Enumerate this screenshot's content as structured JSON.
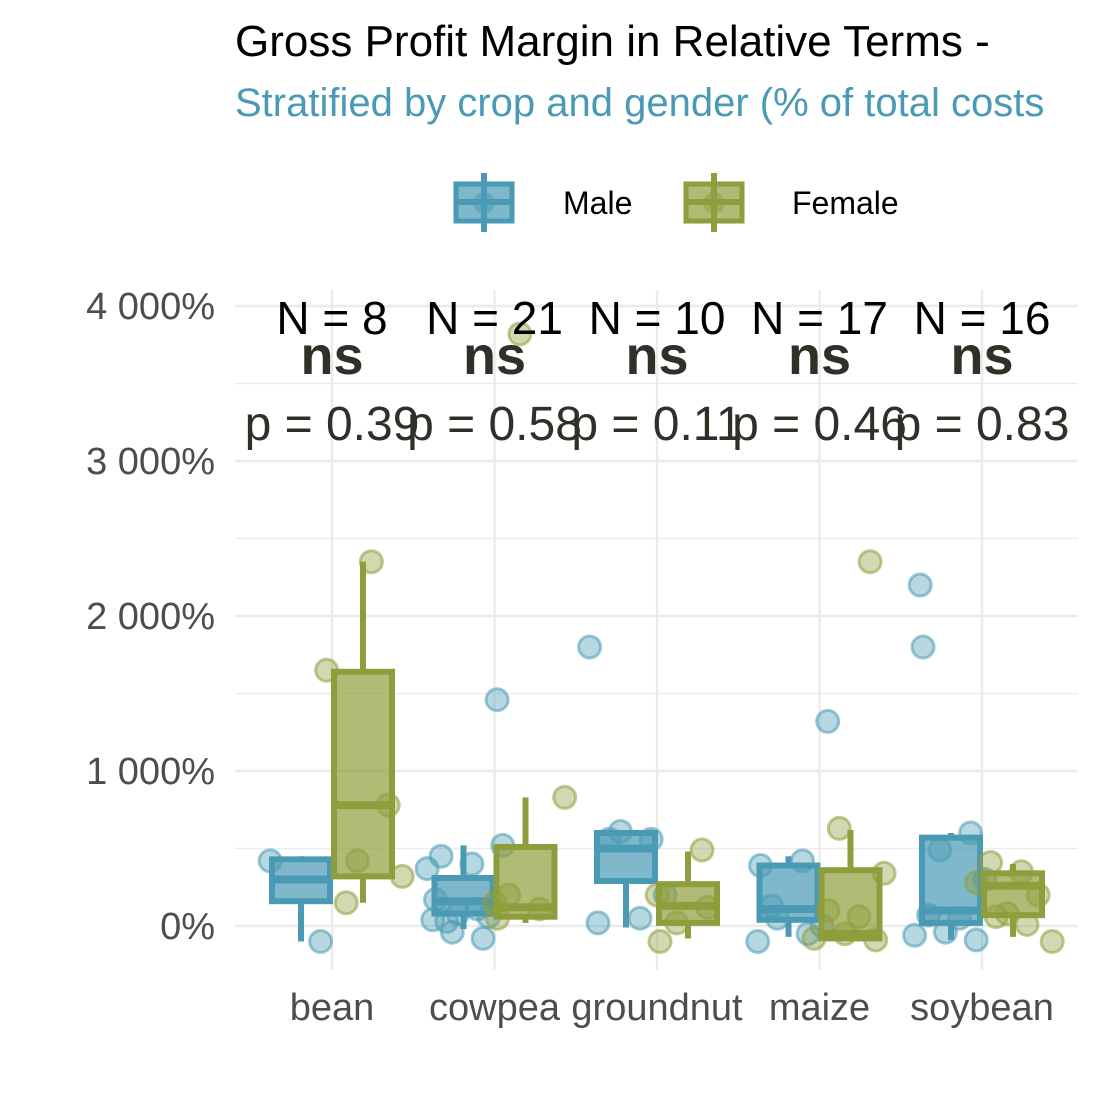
{
  "chart_data": {
    "type": "boxplot",
    "title": "Gross Profit Margin in Relative Terms - ",
    "subtitle": "Stratified by crop and gender (% of total costs",
    "xlabel": "",
    "ylabel": "",
    "ylim": [
      -280,
      4000
    ],
    "y_ticks": [
      0,
      1000,
      2000,
      3000,
      4000
    ],
    "y_tick_labels": [
      "0%",
      "1 000%",
      "2 000%",
      "3 000%",
      "4 000%"
    ],
    "grid": true,
    "legend_position": "top",
    "categories": [
      "bean",
      "cowpea",
      "groundnut",
      "maize",
      "soybean"
    ],
    "series": [
      {
        "name": "Male",
        "color": "#4a9ab5",
        "boxes": [
          {
            "q1": 160,
            "median": 300,
            "q3": 430,
            "whisker_low": -100,
            "whisker_high": 450
          },
          {
            "q1": 80,
            "median": 160,
            "q3": 310,
            "whisker_low": -20,
            "whisker_high": 520
          },
          {
            "q1": 290,
            "median": 500,
            "q3": 600,
            "whisker_low": -10,
            "whisker_high": 600
          },
          {
            "q1": 40,
            "median": 110,
            "q3": 390,
            "whisker_low": -70,
            "whisker_high": 450
          },
          {
            "q1": 20,
            "median": 100,
            "q3": 570,
            "whisker_low": -90,
            "whisker_high": 600
          }
        ],
        "points": [
          [
            420,
            -100
          ],
          [
            1460,
            450,
            400,
            370,
            60,
            80,
            520,
            30,
            110,
            170,
            40,
            -80,
            -40
          ],
          [
            1800,
            560,
            610,
            200,
            560,
            50,
            20
          ],
          [
            1320,
            130,
            420,
            390,
            -100,
            -50,
            50,
            0
          ],
          [
            1800,
            2200,
            600,
            490,
            300,
            70,
            50,
            -60,
            -90,
            -40
          ]
        ]
      },
      {
        "name": "Female",
        "color": "#8f9e3c",
        "boxes": [
          {
            "q1": 320,
            "median": 780,
            "q3": 1640,
            "whisker_low": 150,
            "whisker_high": 2350
          },
          {
            "q1": 60,
            "median": 120,
            "q3": 510,
            "whisker_low": 20,
            "whisker_high": 830
          },
          {
            "q1": 20,
            "median": 130,
            "q3": 270,
            "whisker_low": -80,
            "whisker_high": 480
          },
          {
            "q1": -80,
            "median": -50,
            "q3": 360,
            "whisker_low": -80,
            "whisker_high": 620
          },
          {
            "q1": 70,
            "median": 260,
            "q3": 340,
            "whisker_low": -70,
            "whisker_high": 400
          }
        ],
        "points": [
          [
            2350,
            1650,
            780,
            420,
            320,
            150
          ],
          [
            3820,
            830,
            200,
            110,
            50,
            150
          ],
          [
            490,
            -100,
            200,
            120,
            20
          ],
          [
            2350,
            630,
            340,
            100,
            60,
            -80,
            -90,
            -50
          ],
          [
            410,
            350,
            280,
            200,
            80,
            -100,
            60,
            10
          ]
        ]
      }
    ],
    "annotations": [
      {
        "n": "N = 8",
        "signif": "ns",
        "p": "p = 0.39"
      },
      {
        "n": "N = 21",
        "signif": "ns",
        "p": "p = 0.58"
      },
      {
        "n": "N = 10",
        "signif": "ns",
        "p": "p = 0.11"
      },
      {
        "n": "N = 17",
        "signif": "ns",
        "p": "p = 0.46"
      },
      {
        "n": "N = 16",
        "signif": "ns",
        "p": "p = 0.83"
      }
    ],
    "subtitle_color": "#4a9ab5",
    "grid_color": "#ebebeb"
  }
}
